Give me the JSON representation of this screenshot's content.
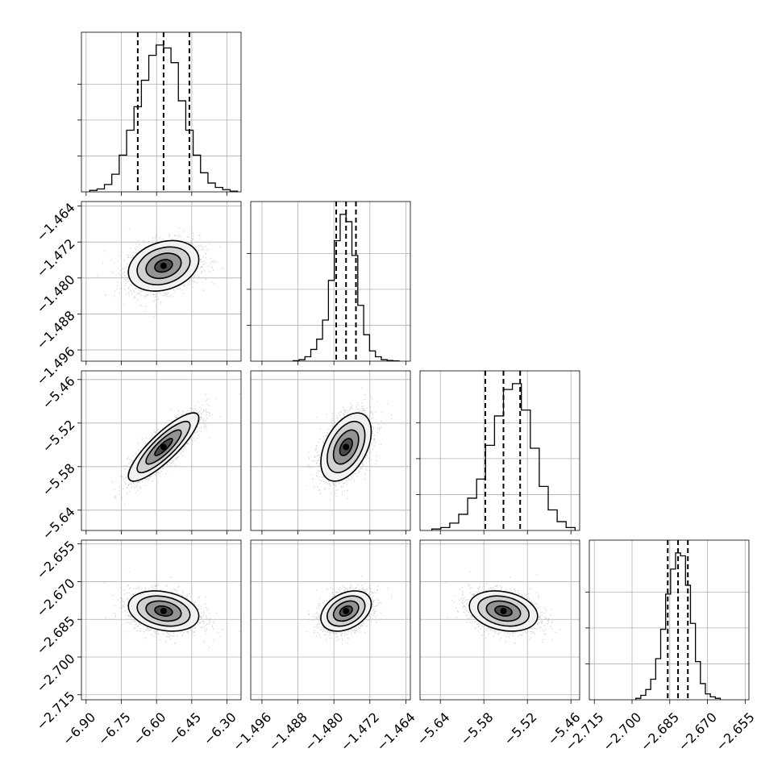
{
  "chart_data": {
    "type": "corner",
    "grid": true,
    "parameters": [
      {
        "range": [
          -6.92,
          -6.24
        ],
        "ticks": [
          -6.9,
          -6.75,
          -6.6,
          -6.45,
          -6.3
        ],
        "tick_labels": [
          "−6.90",
          "−6.75",
          "−6.60",
          "−6.45",
          "−6.30"
        ],
        "quantiles": [
          -6.68,
          -6.57,
          -6.46
        ],
        "mean": -6.57,
        "sd": 0.075
      },
      {
        "range": [
          -1.4985,
          -1.463
        ],
        "ticks": [
          -1.496,
          -1.488,
          -1.48,
          -1.472,
          -1.464
        ],
        "tick_labels": [
          "−1.496",
          "−1.488",
          "−1.480",
          "−1.472",
          "−1.464"
        ],
        "quantiles": [
          -1.4795,
          -1.4773,
          -1.4751
        ],
        "mean": -1.4773,
        "sd": 0.0028
      },
      {
        "range": [
          -5.668,
          -5.448
        ],
        "ticks": [
          -5.64,
          -5.58,
          -5.52,
          -5.46
        ],
        "tick_labels": [
          "−5.64",
          "−5.58",
          "−5.52",
          "−5.46"
        ],
        "quantiles": [
          -5.578,
          -5.553,
          -5.53
        ],
        "mean": -5.553,
        "sd": 0.0235
      },
      {
        "range": [
          -2.717,
          -2.6535
        ],
        "ticks": [
          -2.715,
          -2.7,
          -2.685,
          -2.67,
          -2.655
        ],
        "tick_labels": [
          "−2.715",
          "−2.700",
          "−2.685",
          "−2.670",
          "−2.655"
        ],
        "quantiles": [
          -2.6858,
          -2.6817,
          -2.6778
        ],
        "mean": -2.6817,
        "sd": 0.004
      }
    ],
    "correlations": [
      [
        0,
        1,
        0.25
      ],
      [
        0,
        2,
        0.85
      ],
      [
        0,
        3,
        -0.25
      ],
      [
        1,
        2,
        0.45
      ],
      [
        1,
        3,
        0.35
      ],
      [
        2,
        3,
        -0.25
      ]
    ],
    "histograms": [
      [
        0.01,
        0.02,
        0.05,
        0.12,
        0.25,
        0.42,
        0.58,
        0.76,
        0.93,
        1.0,
        0.98,
        0.88,
        0.62,
        0.42,
        0.25,
        0.13,
        0.06,
        0.03,
        0.015,
        0.005
      ],
      [
        0.003,
        0.01,
        0.03,
        0.08,
        0.15,
        0.28,
        0.55,
        0.82,
        1.0,
        0.95,
        0.72,
        0.38,
        0.18,
        0.07,
        0.03,
        0.01,
        0.005,
        0.002
      ],
      [
        0.01,
        0.02,
        0.05,
        0.11,
        0.22,
        0.35,
        0.58,
        0.78,
        0.96,
        1.0,
        0.82,
        0.56,
        0.3,
        0.14,
        0.06,
        0.02
      ],
      [
        0.01,
        0.03,
        0.07,
        0.14,
        0.28,
        0.48,
        0.72,
        0.89,
        1.0,
        0.98,
        0.78,
        0.52,
        0.26,
        0.11,
        0.04,
        0.02,
        0.01
      ]
    ]
  }
}
